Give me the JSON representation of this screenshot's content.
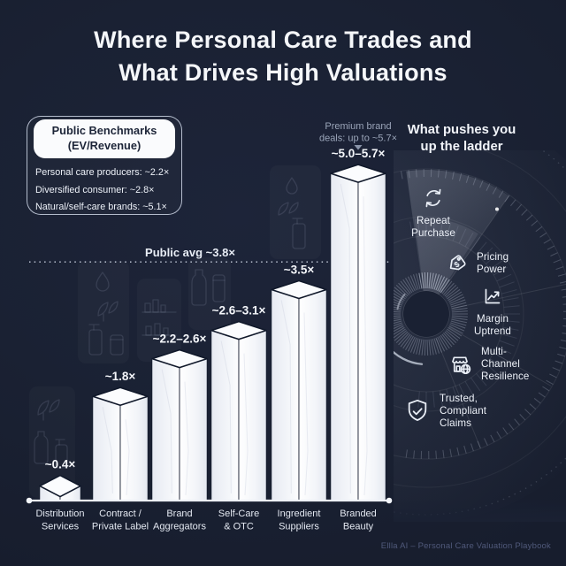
{
  "colors": {
    "background": "#1a2133",
    "bar_face": "#fbfcfe",
    "bar_face_shade": "#e7eaf2",
    "outline_dark": "#10182a",
    "text_primary": "#f3f6fb",
    "text_muted": "#9aa4b8",
    "footer_text": "#50597a"
  },
  "title": {
    "lines": [
      "Where Personal Care Trades and",
      "What Drives High Valuations"
    ]
  },
  "benchmarks": {
    "heading_lines": [
      "Public Benchmarks",
      "(EV/Revenue)"
    ],
    "items": [
      "Personal care producers: ~2.2×",
      "Diversified consumer: ~2.8×",
      "Natural/self-care brands: ~5.1×"
    ]
  },
  "ladder": {
    "heading_lines": [
      "What pushes you",
      "up the ladder"
    ],
    "items": [
      {
        "icon": "repeat-icon",
        "lines": [
          "Repeat",
          "Purchase"
        ]
      },
      {
        "icon": "price-tag-icon",
        "lines": [
          "Pricing",
          "Power"
        ]
      },
      {
        "icon": "margin-chart-icon",
        "lines": [
          "Margin",
          "Uptrend"
        ]
      },
      {
        "icon": "store-globe-icon",
        "lines": [
          "Multi-",
          "Channel",
          "Resilience"
        ]
      },
      {
        "icon": "shield-check-icon",
        "lines": [
          "Trusted,",
          "Compliant",
          "Claims"
        ]
      }
    ]
  },
  "chart_data": {
    "type": "bar",
    "title": "Where Personal Care Trades and What Drives High Valuations",
    "unit": "EV/Revenue multiple (×)",
    "categories": [
      [
        "Distribution",
        "Services"
      ],
      [
        "Contract /",
        "Private Label"
      ],
      [
        "Brand",
        "Aggregators"
      ],
      [
        "Self-Care",
        "& OTC"
      ],
      [
        "Ingredient",
        "Suppliers"
      ],
      [
        "Branded",
        "Beauty"
      ]
    ],
    "value_labels": [
      "~0.4×",
      "~1.8×",
      "~2.2–2.6×",
      "~2.6–3.1×",
      "~3.5×",
      "~5.0–5.7×"
    ],
    "values": [
      0.4,
      1.8,
      2.4,
      2.85,
      3.5,
      5.35
    ],
    "ylim": [
      0,
      5.7
    ],
    "grid": false,
    "reference_line": {
      "label": "Public avg ~3.8×",
      "value": 3.8
    },
    "annotation": {
      "lines": [
        "Premium brand",
        "deals: up to ~5.7×"
      ],
      "target_index": 5
    }
  },
  "footer": "Ellla AI – Personal Care Valuation Playbook"
}
